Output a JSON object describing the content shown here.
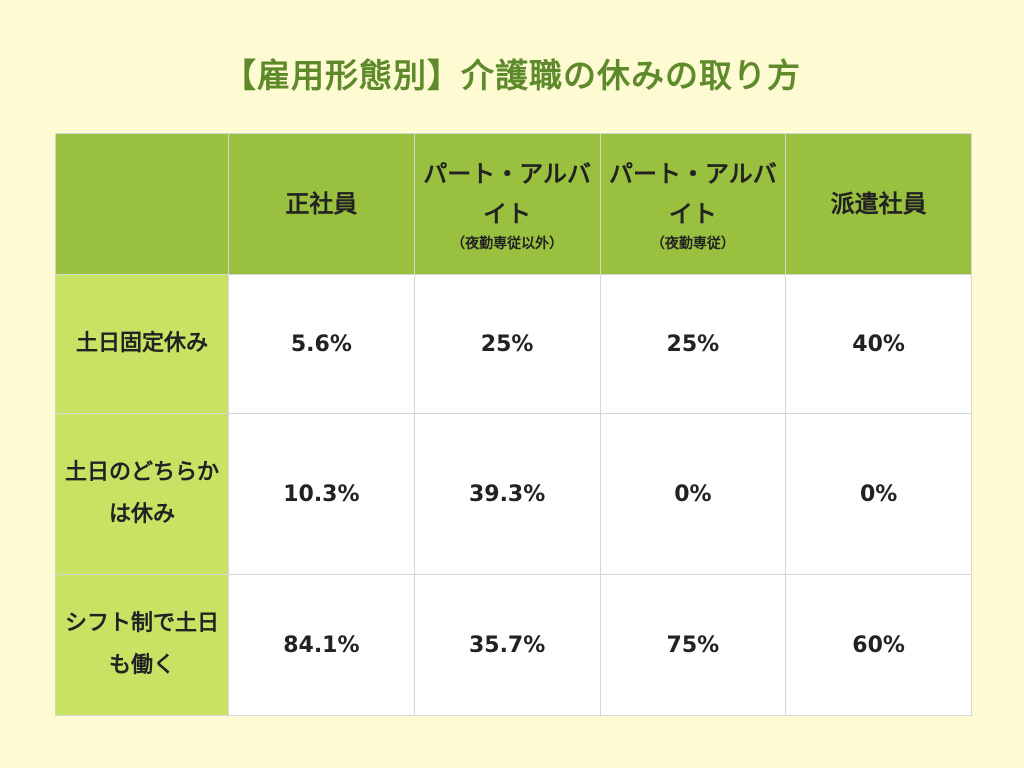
{
  "title": "【雇用形態別】介護職の休みの取り方",
  "colors": {
    "background": "#fefad2",
    "header": "#99c03e",
    "row_header": "#c8e264",
    "title": "#5e8a2c"
  },
  "chart_data": {
    "type": "table",
    "title": "【雇用形態別】介護職の休みの取り方",
    "columns": [
      {
        "name": "正社員",
        "sub": ""
      },
      {
        "name": "パート・アルバイト",
        "sub": "（夜勤専従以外）"
      },
      {
        "name": "パート・アルバイト",
        "sub": "（夜勤専従）"
      },
      {
        "name": "派遣社員",
        "sub": ""
      }
    ],
    "rows": [
      {
        "label": "土日固定休み",
        "values": [
          "5.6%",
          "25%",
          "25%",
          "40%"
        ]
      },
      {
        "label": "土日のどちらかは休み",
        "values": [
          "10.3%",
          "39.3%",
          "0%",
          "0%"
        ]
      },
      {
        "label": "シフト制で土日も働く",
        "values": [
          "84.1%",
          "35.7%",
          "75%",
          "60%"
        ]
      }
    ]
  }
}
